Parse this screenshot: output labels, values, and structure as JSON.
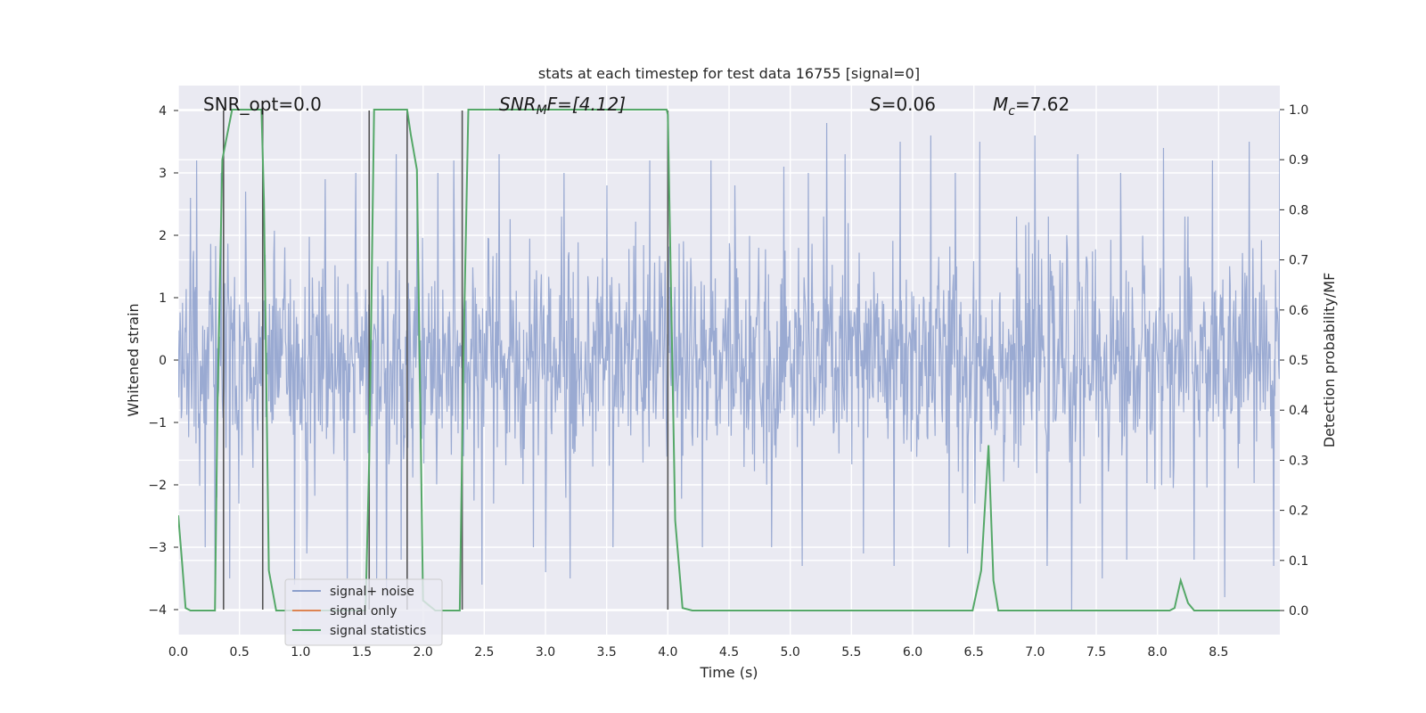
{
  "chart_data": {
    "type": "line",
    "title": "stats at each timestep for test data 16755 [signal=0]",
    "xlabel": "Time (s)",
    "ylabel_left": "Whitened strain",
    "ylabel_right": "Detection probability/MF",
    "xlim": [
      0,
      9.0
    ],
    "ylim_left": [
      -4.4,
      4.4
    ],
    "ylim_right": [
      -0.048,
      1.048
    ],
    "x_ticks": [
      0.0,
      0.5,
      1.0,
      1.5,
      2.0,
      2.5,
      3.0,
      3.5,
      4.0,
      4.5,
      5.0,
      5.5,
      6.0,
      6.5,
      7.0,
      7.5,
      8.0,
      8.5
    ],
    "x_tick_labels": [
      "0.0",
      "0.5",
      "1.0",
      "1.5",
      "2.0",
      "2.5",
      "3.0",
      "3.5",
      "4.0",
      "4.5",
      "5.0",
      "5.5",
      "6.0",
      "6.5",
      "7.0",
      "7.5",
      "8.0",
      "8.5"
    ],
    "y_ticks_left": [
      4,
      3,
      2,
      1,
      0,
      -1,
      -2,
      -3,
      -4
    ],
    "y_tick_labels_left": [
      "4",
      "3",
      "2",
      "1",
      "0",
      "−1",
      "−2",
      "−3",
      "−4"
    ],
    "y_ticks_right": [
      1.0,
      0.9,
      0.8,
      0.7,
      0.6,
      0.5,
      0.4,
      0.3,
      0.2,
      0.1,
      0.0
    ],
    "y_tick_labels_right": [
      "1.0",
      "0.9",
      "0.8",
      "0.7",
      "0.6",
      "0.5",
      "0.4",
      "0.3",
      "0.2",
      "0.1",
      "0.0"
    ],
    "grid": true,
    "legend_position": "lower-left",
    "series": [
      {
        "name": "signal+ noise",
        "axis": "left",
        "color": "#8c9fcc",
        "description": "dense whitened noise samples; bulk within about ±1.6 with frequent spikes to about ±3.5, max ~4.0 near t=9.0, min ~−4.0 near t=7.3",
        "envelope_upper_bulk": 1.6,
        "envelope_lower_bulk": -1.6,
        "spikes_up": [
          [
            0.1,
            2.6
          ],
          [
            0.15,
            3.2
          ],
          [
            0.35,
            3.0
          ],
          [
            0.55,
            2.7
          ],
          [
            1.2,
            2.9
          ],
          [
            1.45,
            3.0
          ],
          [
            1.78,
            3.3
          ],
          [
            1.95,
            2.9
          ],
          [
            2.12,
            3.0
          ],
          [
            2.25,
            3.2
          ],
          [
            2.62,
            3.3
          ],
          [
            3.15,
            3.0
          ],
          [
            3.5,
            2.8
          ],
          [
            3.85,
            3.2
          ],
          [
            4.35,
            3.2
          ],
          [
            4.55,
            2.8
          ],
          [
            4.95,
            3.1
          ],
          [
            5.15,
            3.0
          ],
          [
            5.3,
            3.8
          ],
          [
            5.45,
            3.3
          ],
          [
            5.9,
            3.5
          ],
          [
            6.15,
            3.6
          ],
          [
            6.35,
            3.0
          ],
          [
            6.55,
            3.5
          ],
          [
            7.0,
            3.6
          ],
          [
            7.35,
            3.3
          ],
          [
            7.7,
            3.0
          ],
          [
            8.05,
            3.4
          ],
          [
            8.45,
            3.2
          ],
          [
            8.75,
            3.5
          ],
          [
            9.0,
            4.0
          ]
        ],
        "spikes_down": [
          [
            0.22,
            -3.0
          ],
          [
            0.3,
            -3.6
          ],
          [
            0.42,
            -3.5
          ],
          [
            0.95,
            -3.6
          ],
          [
            1.05,
            -3.1
          ],
          [
            1.38,
            -3.5
          ],
          [
            1.62,
            -3.5
          ],
          [
            1.7,
            -3.8
          ],
          [
            1.82,
            -3.2
          ],
          [
            2.48,
            -3.6
          ],
          [
            2.9,
            -3.0
          ],
          [
            3.0,
            -3.4
          ],
          [
            3.2,
            -3.5
          ],
          [
            3.55,
            -3.0
          ],
          [
            4.28,
            -3.0
          ],
          [
            4.85,
            -3.0
          ],
          [
            5.1,
            -3.3
          ],
          [
            5.6,
            -3.1
          ],
          [
            5.85,
            -3.3
          ],
          [
            6.3,
            -3.0
          ],
          [
            6.45,
            -3.1
          ],
          [
            7.1,
            -3.3
          ],
          [
            7.3,
            -4.0
          ],
          [
            7.55,
            -3.5
          ],
          [
            7.75,
            -3.2
          ],
          [
            8.3,
            -3.2
          ],
          [
            8.55,
            -3.8
          ],
          [
            8.95,
            -3.3
          ]
        ]
      },
      {
        "name": "signal only",
        "axis": "left",
        "color": "#dd8452",
        "x": [],
        "y": []
      },
      {
        "name": "signal statistics",
        "axis": "right",
        "color": "#55a868",
        "x": [
          0.0,
          0.03,
          0.06,
          0.1,
          0.15,
          0.2,
          0.3,
          0.32,
          0.36,
          0.4,
          0.44,
          0.5,
          0.6,
          0.68,
          0.7,
          0.74,
          0.8,
          0.85,
          1.0,
          1.2,
          1.4,
          1.5,
          1.53,
          1.56,
          1.6,
          1.65,
          1.8,
          1.87,
          1.9,
          1.95,
          2.0,
          2.1,
          2.2,
          2.3,
          2.33,
          2.37,
          2.4,
          2.5,
          3.0,
          3.5,
          3.99,
          4.0,
          4.06,
          4.12,
          4.2,
          5.0,
          6.0,
          6.49,
          6.56,
          6.62,
          6.66,
          6.7,
          6.8,
          7.5,
          8.1,
          8.14,
          8.19,
          8.25,
          8.3,
          8.5,
          9.0
        ],
        "y": [
          0.19,
          0.1,
          0.005,
          0.0,
          0.0,
          0.0,
          0.0,
          0.4,
          0.9,
          0.95,
          1.0,
          1.0,
          1.0,
          1.0,
          0.82,
          0.08,
          0.0,
          0.0,
          0.0,
          0.0,
          0.0,
          0.0,
          0.0,
          0.3,
          1.0,
          1.0,
          1.0,
          1.0,
          0.95,
          0.88,
          0.02,
          0.0,
          0.0,
          0.0,
          0.5,
          1.0,
          1.0,
          1.0,
          1.0,
          1.0,
          1.0,
          0.99,
          0.18,
          0.005,
          0.0,
          0.0,
          0.0,
          0.0,
          0.08,
          0.33,
          0.06,
          0.0,
          0.0,
          0.0,
          0.0,
          0.005,
          0.06,
          0.015,
          0.0,
          0.0,
          0.0
        ]
      }
    ],
    "vertical_markers": {
      "color": "#555555",
      "x": [
        0.37,
        0.69,
        1.56,
        1.87,
        2.32,
        4.0
      ],
      "y_range_left": [
        -4,
        4
      ]
    },
    "annotations": {
      "snr_opt": "SNR_opt=0.0",
      "snr_mf_label": "SNR",
      "snr_mf_sub": "M",
      "snr_mf_rest": "F=[4.12]",
      "s_label": "S",
      "s_value": "=0.06",
      "mc_label": "M",
      "mc_sub": "c",
      "mc_value": "=7.62"
    },
    "legend": [
      "signal+ noise",
      "signal only",
      "signal statistics"
    ]
  }
}
